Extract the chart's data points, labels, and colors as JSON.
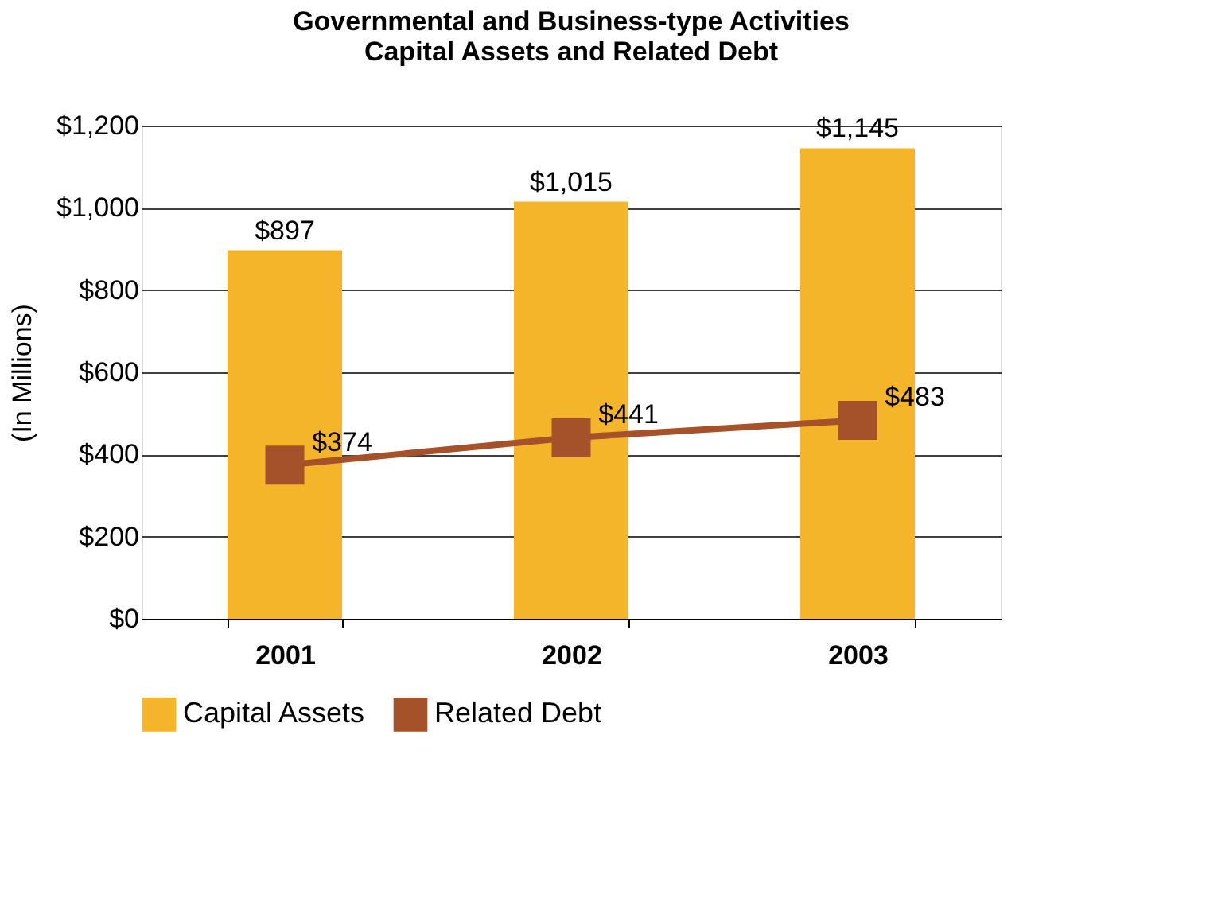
{
  "chart_data": {
    "type": "bar",
    "title": "Governmental and Business-type Activities\nCapital Assets and Related Debt",
    "ylabel": "(In Millions)",
    "categories": [
      "2001",
      "2002",
      "2003"
    ],
    "series": [
      {
        "name": "Capital Assets",
        "color": "#f5b52a",
        "values": [
          897,
          1015,
          1145
        ],
        "value_labels": [
          "$897",
          "$1,015",
          "$1,145"
        ]
      },
      {
        "name": "Related Debt",
        "type": "line",
        "color": "#a5522a",
        "values": [
          374,
          441,
          483
        ],
        "value_labels": [
          "$374",
          "$441",
          "$483"
        ],
        "marker": "square",
        "line_style": "solid"
      }
    ],
    "ylim": [
      0,
      1200
    ],
    "yticks": [
      {
        "value": 0,
        "label": "$0"
      },
      {
        "value": 200,
        "label": "$200"
      },
      {
        "value": 400,
        "label": "$400"
      },
      {
        "value": 600,
        "label": "$600"
      },
      {
        "value": 800,
        "label": "$800"
      },
      {
        "value": 1000,
        "label": "$1,000"
      },
      {
        "value": 1200,
        "label": "$1,200"
      }
    ],
    "grid": "y",
    "legend": "bottom"
  }
}
